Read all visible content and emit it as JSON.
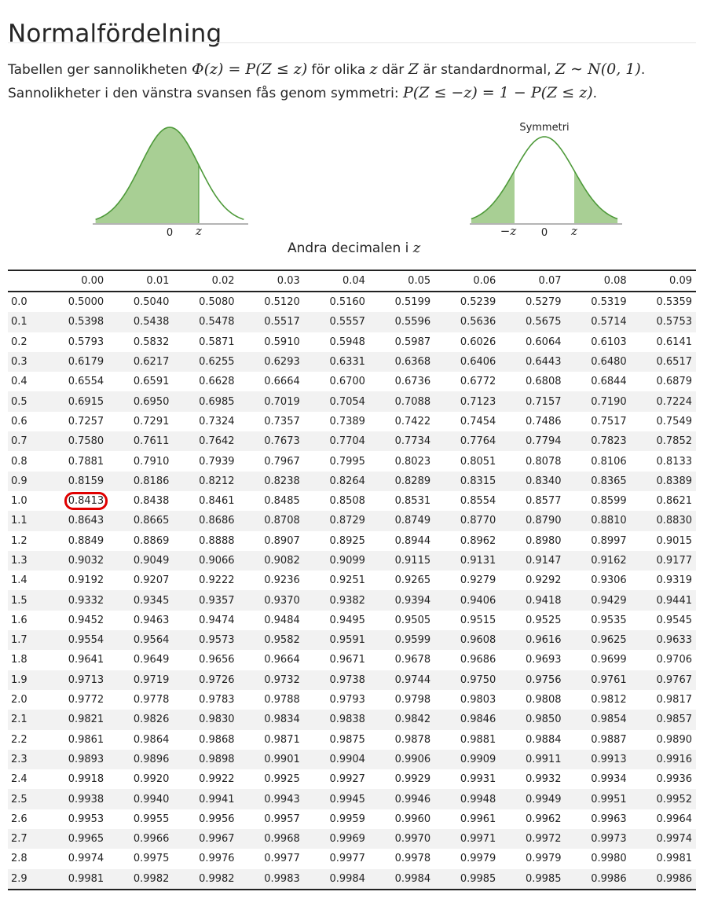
{
  "page": {
    "title": "Normalfördelning"
  },
  "intro": {
    "line1": {
      "pre": "Tabellen ger sannolikheten ",
      "math1": "Φ(z) = P(Z ≤ z)",
      "mid1": " för olika ",
      "math2": "z",
      "mid2": " där ",
      "math3": "Z",
      "mid3": " är standardnormal, ",
      "math4": "Z ∼ N(0, 1)",
      "post": "."
    },
    "line2": {
      "pre": "Sannolikheter i den vänstra svansen fås genom symmetri: ",
      "math": "P(Z ≤ −z) = 1 − P(Z ≤ z)",
      "post": "."
    }
  },
  "figures": {
    "left": {
      "tick0": "0",
      "tickz": "z"
    },
    "right": {
      "title": "Symmetri",
      "tickneg": "−z",
      "tick0": "0",
      "tickz": "z"
    },
    "fill_color": "#a8cf94",
    "line_color": "#4e9a3a"
  },
  "caption": {
    "text": "Andra decimalen i ",
    "math": "z"
  },
  "table": {
    "corner": "",
    "columns": [
      "0.00",
      "0.01",
      "0.02",
      "0.03",
      "0.04",
      "0.05",
      "0.06",
      "0.07",
      "0.08",
      "0.09"
    ],
    "highlight": {
      "row": 10,
      "col": 0,
      "color": "#e00000"
    },
    "rows": [
      {
        "z": "0.0",
        "v": [
          "0.5000",
          "0.5040",
          "0.5080",
          "0.5120",
          "0.5160",
          "0.5199",
          "0.5239",
          "0.5279",
          "0.5319",
          "0.5359"
        ]
      },
      {
        "z": "0.1",
        "v": [
          "0.5398",
          "0.5438",
          "0.5478",
          "0.5517",
          "0.5557",
          "0.5596",
          "0.5636",
          "0.5675",
          "0.5714",
          "0.5753"
        ]
      },
      {
        "z": "0.2",
        "v": [
          "0.5793",
          "0.5832",
          "0.5871",
          "0.5910",
          "0.5948",
          "0.5987",
          "0.6026",
          "0.6064",
          "0.6103",
          "0.6141"
        ]
      },
      {
        "z": "0.3",
        "v": [
          "0.6179",
          "0.6217",
          "0.6255",
          "0.6293",
          "0.6331",
          "0.6368",
          "0.6406",
          "0.6443",
          "0.6480",
          "0.6517"
        ]
      },
      {
        "z": "0.4",
        "v": [
          "0.6554",
          "0.6591",
          "0.6628",
          "0.6664",
          "0.6700",
          "0.6736",
          "0.6772",
          "0.6808",
          "0.6844",
          "0.6879"
        ]
      },
      {
        "z": "0.5",
        "v": [
          "0.6915",
          "0.6950",
          "0.6985",
          "0.7019",
          "0.7054",
          "0.7088",
          "0.7123",
          "0.7157",
          "0.7190",
          "0.7224"
        ]
      },
      {
        "z": "0.6",
        "v": [
          "0.7257",
          "0.7291",
          "0.7324",
          "0.7357",
          "0.7389",
          "0.7422",
          "0.7454",
          "0.7486",
          "0.7517",
          "0.7549"
        ]
      },
      {
        "z": "0.7",
        "v": [
          "0.7580",
          "0.7611",
          "0.7642",
          "0.7673",
          "0.7704",
          "0.7734",
          "0.7764",
          "0.7794",
          "0.7823",
          "0.7852"
        ]
      },
      {
        "z": "0.8",
        "v": [
          "0.7881",
          "0.7910",
          "0.7939",
          "0.7967",
          "0.7995",
          "0.8023",
          "0.8051",
          "0.8078",
          "0.8106",
          "0.8133"
        ]
      },
      {
        "z": "0.9",
        "v": [
          "0.8159",
          "0.8186",
          "0.8212",
          "0.8238",
          "0.8264",
          "0.8289",
          "0.8315",
          "0.8340",
          "0.8365",
          "0.8389"
        ]
      },
      {
        "z": "1.0",
        "v": [
          "0.8413",
          "0.8438",
          "0.8461",
          "0.8485",
          "0.8508",
          "0.8531",
          "0.8554",
          "0.8577",
          "0.8599",
          "0.8621"
        ]
      },
      {
        "z": "1.1",
        "v": [
          "0.8643",
          "0.8665",
          "0.8686",
          "0.8708",
          "0.8729",
          "0.8749",
          "0.8770",
          "0.8790",
          "0.8810",
          "0.8830"
        ]
      },
      {
        "z": "1.2",
        "v": [
          "0.8849",
          "0.8869",
          "0.8888",
          "0.8907",
          "0.8925",
          "0.8944",
          "0.8962",
          "0.8980",
          "0.8997",
          "0.9015"
        ]
      },
      {
        "z": "1.3",
        "v": [
          "0.9032",
          "0.9049",
          "0.9066",
          "0.9082",
          "0.9099",
          "0.9115",
          "0.9131",
          "0.9147",
          "0.9162",
          "0.9177"
        ]
      },
      {
        "z": "1.4",
        "v": [
          "0.9192",
          "0.9207",
          "0.9222",
          "0.9236",
          "0.9251",
          "0.9265",
          "0.9279",
          "0.9292",
          "0.9306",
          "0.9319"
        ]
      },
      {
        "z": "1.5",
        "v": [
          "0.9332",
          "0.9345",
          "0.9357",
          "0.9370",
          "0.9382",
          "0.9394",
          "0.9406",
          "0.9418",
          "0.9429",
          "0.9441"
        ]
      },
      {
        "z": "1.6",
        "v": [
          "0.9452",
          "0.9463",
          "0.9474",
          "0.9484",
          "0.9495",
          "0.9505",
          "0.9515",
          "0.9525",
          "0.9535",
          "0.9545"
        ]
      },
      {
        "z": "1.7",
        "v": [
          "0.9554",
          "0.9564",
          "0.9573",
          "0.9582",
          "0.9591",
          "0.9599",
          "0.9608",
          "0.9616",
          "0.9625",
          "0.9633"
        ]
      },
      {
        "z": "1.8",
        "v": [
          "0.9641",
          "0.9649",
          "0.9656",
          "0.9664",
          "0.9671",
          "0.9678",
          "0.9686",
          "0.9693",
          "0.9699",
          "0.9706"
        ]
      },
      {
        "z": "1.9",
        "v": [
          "0.9713",
          "0.9719",
          "0.9726",
          "0.9732",
          "0.9738",
          "0.9744",
          "0.9750",
          "0.9756",
          "0.9761",
          "0.9767"
        ]
      },
      {
        "z": "2.0",
        "v": [
          "0.9772",
          "0.9778",
          "0.9783",
          "0.9788",
          "0.9793",
          "0.9798",
          "0.9803",
          "0.9808",
          "0.9812",
          "0.9817"
        ]
      },
      {
        "z": "2.1",
        "v": [
          "0.9821",
          "0.9826",
          "0.9830",
          "0.9834",
          "0.9838",
          "0.9842",
          "0.9846",
          "0.9850",
          "0.9854",
          "0.9857"
        ]
      },
      {
        "z": "2.2",
        "v": [
          "0.9861",
          "0.9864",
          "0.9868",
          "0.9871",
          "0.9875",
          "0.9878",
          "0.9881",
          "0.9884",
          "0.9887",
          "0.9890"
        ]
      },
      {
        "z": "2.3",
        "v": [
          "0.9893",
          "0.9896",
          "0.9898",
          "0.9901",
          "0.9904",
          "0.9906",
          "0.9909",
          "0.9911",
          "0.9913",
          "0.9916"
        ]
      },
      {
        "z": "2.4",
        "v": [
          "0.9918",
          "0.9920",
          "0.9922",
          "0.9925",
          "0.9927",
          "0.9929",
          "0.9931",
          "0.9932",
          "0.9934",
          "0.9936"
        ]
      },
      {
        "z": "2.5",
        "v": [
          "0.9938",
          "0.9940",
          "0.9941",
          "0.9943",
          "0.9945",
          "0.9946",
          "0.9948",
          "0.9949",
          "0.9951",
          "0.9952"
        ]
      },
      {
        "z": "2.6",
        "v": [
          "0.9953",
          "0.9955",
          "0.9956",
          "0.9957",
          "0.9959",
          "0.9960",
          "0.9961",
          "0.9962",
          "0.9963",
          "0.9964"
        ]
      },
      {
        "z": "2.7",
        "v": [
          "0.9965",
          "0.9966",
          "0.9967",
          "0.9968",
          "0.9969",
          "0.9970",
          "0.9971",
          "0.9972",
          "0.9973",
          "0.9974"
        ]
      },
      {
        "z": "2.8",
        "v": [
          "0.9974",
          "0.9975",
          "0.9976",
          "0.9977",
          "0.9977",
          "0.9978",
          "0.9979",
          "0.9979",
          "0.9980",
          "0.9981"
        ]
      },
      {
        "z": "2.9",
        "v": [
          "0.9981",
          "0.9982",
          "0.9982",
          "0.9983",
          "0.9984",
          "0.9984",
          "0.9985",
          "0.9985",
          "0.9986",
          "0.9986"
        ]
      }
    ]
  }
}
